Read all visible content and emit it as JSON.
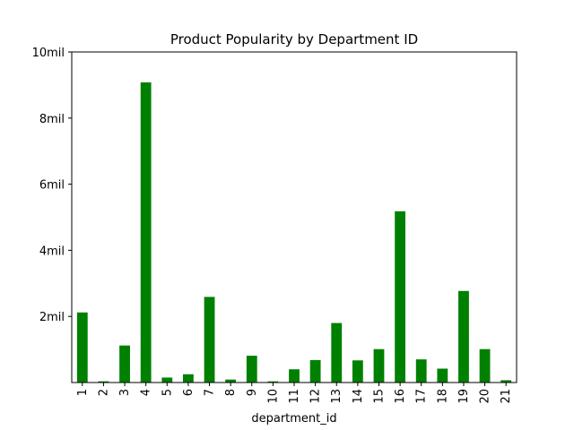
{
  "chart_data": {
    "type": "bar",
    "title": "Product Popularity by Department ID",
    "xlabel": "department_id",
    "ylabel": "",
    "categories": [
      "1",
      "2",
      "3",
      "4",
      "5",
      "6",
      "7",
      "8",
      "9",
      "10",
      "11",
      "12",
      "13",
      "14",
      "15",
      "16",
      "17",
      "18",
      "19",
      "20",
      "21"
    ],
    "values": [
      2120000,
      36000,
      1120000,
      9080000,
      150000,
      250000,
      2590000,
      90000,
      810000,
      35000,
      400000,
      680000,
      1800000,
      670000,
      1010000,
      5180000,
      700000,
      420000,
      2770000,
      1010000,
      70000
    ],
    "ylim": [
      0,
      10000000
    ],
    "yticks": [
      2000000,
      4000000,
      6000000,
      8000000,
      10000000
    ],
    "ytick_labels": [
      "2mil",
      "4mil",
      "6mil",
      "8mil",
      "10mil"
    ],
    "bar_color": "#008000",
    "grid": false,
    "legend": false
  }
}
